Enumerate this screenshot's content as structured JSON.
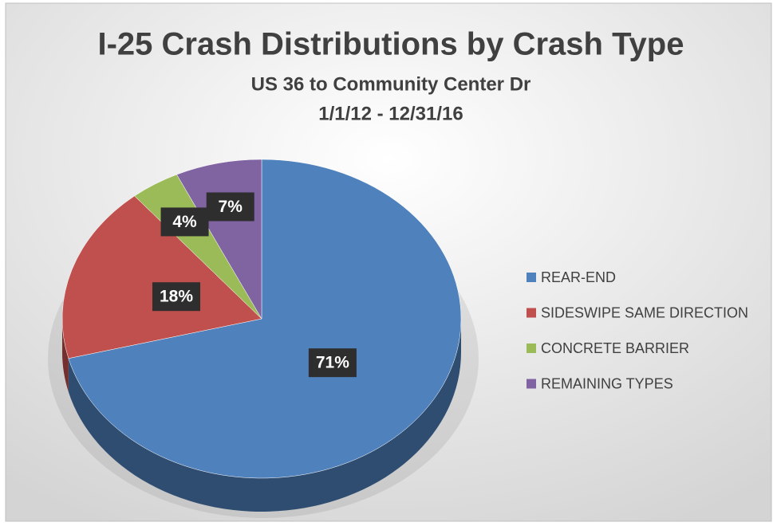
{
  "chart_data": {
    "type": "pie",
    "title": "I-25 Crash Distributions by Crash Type",
    "subtitle": [
      "US 36 to Community Center Dr",
      "1/1/12 - 12/31/16"
    ],
    "categories": [
      "REAR-END",
      "SIDESWIPE SAME DIRECTION",
      "CONCRETE BARRIER",
      "REMAINING TYPES"
    ],
    "values": [
      71,
      18,
      4,
      7
    ],
    "value_labels": [
      "71%",
      "18%",
      "4%",
      "7%"
    ],
    "colors": [
      "#4f81bd",
      "#c0504d",
      "#9bbb59",
      "#8064a2"
    ],
    "legend": "right"
  }
}
